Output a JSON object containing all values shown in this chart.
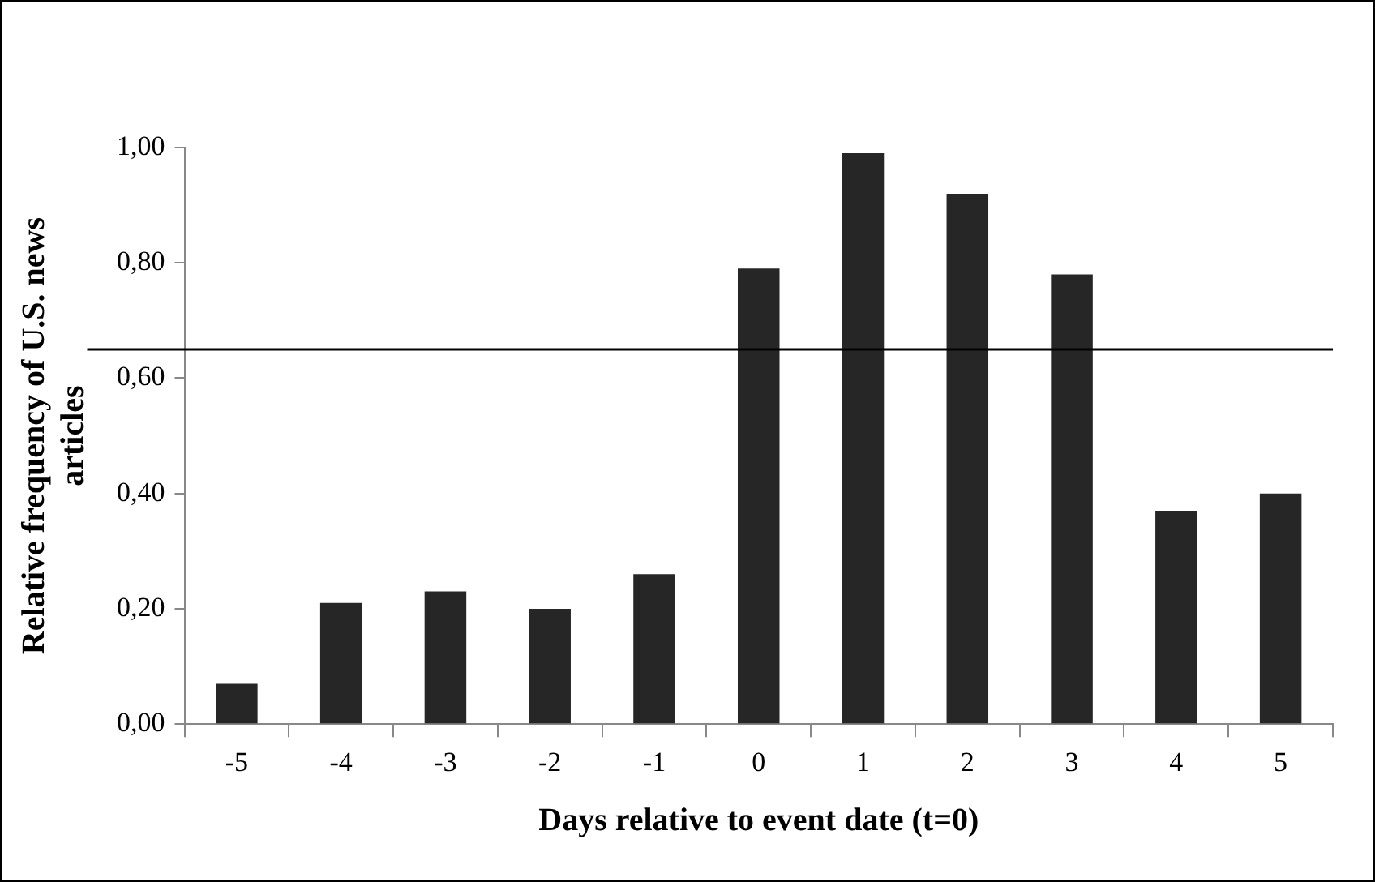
{
  "chart_data": {
    "type": "bar",
    "xlabel": "Days relative to event date (t=0)",
    "ylabel": "Relative frequency of U.S. news articles",
    "categories": [
      "-5",
      "-4",
      "-3",
      "-2",
      "-1",
      "0",
      "1",
      "2",
      "3",
      "4",
      "5"
    ],
    "values": [
      0.07,
      0.21,
      0.23,
      0.2,
      0.26,
      0.79,
      0.99,
      0.92,
      0.78,
      0.37,
      0.4
    ],
    "color": "#262626",
    "ylim": [
      0,
      1
    ],
    "yticks": [
      {
        "value": 0,
        "label": "0,00"
      },
      {
        "value": 0.2,
        "label": "0,20"
      },
      {
        "value": 0.4,
        "label": "0,40"
      },
      {
        "value": 0.6,
        "label": "0,60"
      },
      {
        "value": 0.8,
        "label": "0,80"
      },
      {
        "value": 1,
        "label": "1,00"
      }
    ],
    "ref_lines": [
      {
        "axis": "y",
        "value": 0.65,
        "color": "#000000"
      }
    ],
    "grid": false,
    "legend": false
  }
}
